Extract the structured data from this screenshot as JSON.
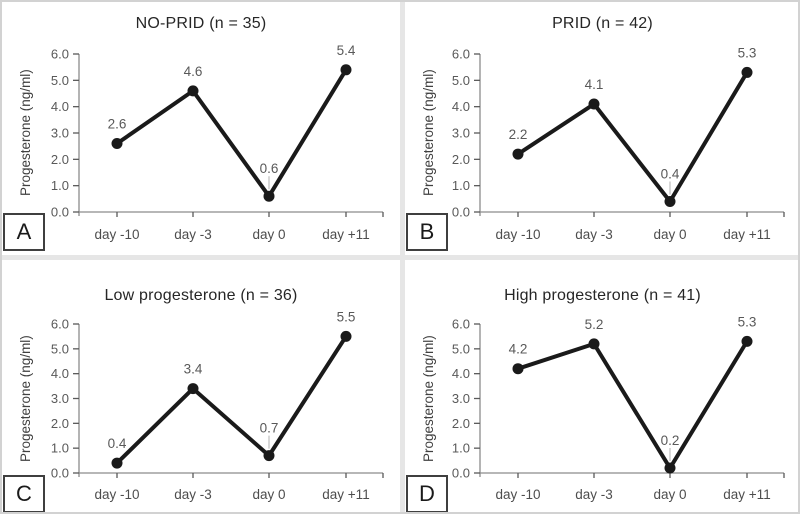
{
  "figure": {
    "background": "#ffffff",
    "border_color": "#d2d2d2",
    "divider_color": "#e6e6e6"
  },
  "style": {
    "line_color": "#1a1a1a",
    "marker_color": "#1a1a1a",
    "axis_color": "#8c8c8c",
    "tick_color": "#595959",
    "tick_label_color": "#595959",
    "category_label_color": "#4d4d4d",
    "data_label_color": "#595959",
    "leader_line_color": "#b0b0b0",
    "title_color": "#262626"
  },
  "chart_data": [
    {
      "type": "line",
      "panel_letter": "A",
      "title": "NO-PRID (n = 35)",
      "categories": [
        "day -10",
        "day -3",
        "day 0",
        "day +11"
      ],
      "values": [
        2.6,
        4.6,
        0.6,
        5.4
      ],
      "data_labels": [
        "2.6",
        "4.6",
        "0.6",
        "5.4"
      ],
      "leader_line_index": 2,
      "xlabel": "",
      "ylabel": "Progesterone (ng/ml)",
      "ylim": [
        0,
        6
      ],
      "ytick_labels": [
        "0.0",
        "1.0",
        "2.0",
        "3.0",
        "4.0",
        "5.0",
        "6.0"
      ],
      "grid": false,
      "legend": "none"
    },
    {
      "type": "line",
      "panel_letter": "B",
      "title": "PRID (n = 42)",
      "categories": [
        "day -10",
        "day -3",
        "day 0",
        "day +11"
      ],
      "values": [
        2.2,
        4.1,
        0.4,
        5.3
      ],
      "data_labels": [
        "2.2",
        "4.1",
        "0.4",
        "5.3"
      ],
      "leader_line_index": 2,
      "xlabel": "",
      "ylabel": "Progesterone (ng/ml)",
      "ylim": [
        0,
        6
      ],
      "ytick_labels": [
        "0.0",
        "1.0",
        "2.0",
        "3.0",
        "4.0",
        "5.0",
        "6.0"
      ],
      "grid": false,
      "legend": "none"
    },
    {
      "type": "line",
      "panel_letter": "C",
      "title": "Low progesterone (n = 36)",
      "categories": [
        "day -10",
        "day -3",
        "day 0",
        "day +11"
      ],
      "values": [
        0.4,
        3.4,
        0.7,
        5.5
      ],
      "data_labels": [
        "0.4",
        "3.4",
        "0.7",
        "5.5"
      ],
      "leader_line_index": 2,
      "xlabel": "",
      "ylabel": "Progesterone (ng/ml)",
      "ylim": [
        0,
        6
      ],
      "ytick_labels": [
        "0.0",
        "1.0",
        "2.0",
        "3.0",
        "4.0",
        "5.0",
        "6.0"
      ],
      "grid": false,
      "legend": "none"
    },
    {
      "type": "line",
      "panel_letter": "D",
      "title": "High progesterone (n = 41)",
      "categories": [
        "day -10",
        "day -3",
        "day 0",
        "day +11"
      ],
      "values": [
        4.2,
        5.2,
        0.2,
        5.3
      ],
      "data_labels": [
        "4.2",
        "5.2",
        "0.2",
        "5.3"
      ],
      "leader_line_index": 2,
      "xlabel": "",
      "ylabel": "Progesterone (ng/ml)",
      "ylim": [
        0,
        6
      ],
      "ytick_labels": [
        "0.0",
        "1.0",
        "2.0",
        "3.0",
        "4.0",
        "5.0",
        "6.0"
      ],
      "grid": false,
      "legend": "none"
    }
  ]
}
